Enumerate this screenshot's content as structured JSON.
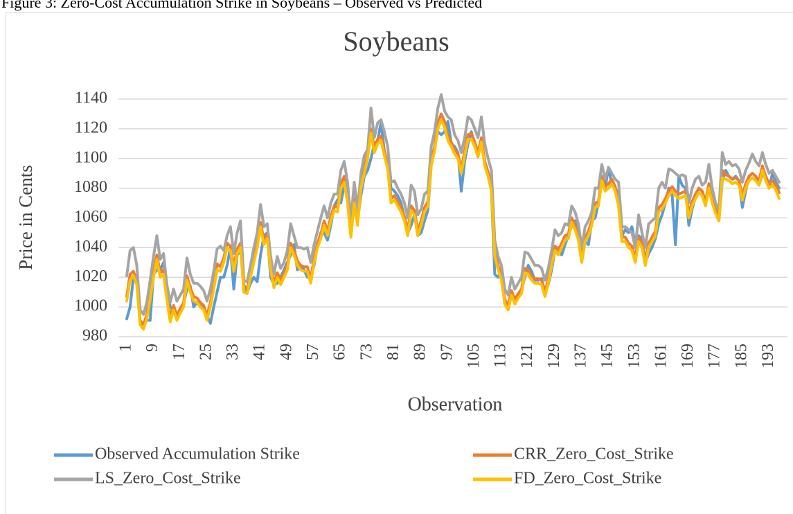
{
  "caption": "Figure 3: Zero-Cost Accumulation Strike in Soybeans – Observed vs Predicted",
  "chart_data": {
    "type": "line",
    "title": "Soybeans",
    "x_label": "Observation",
    "y_label": "Price in Cents",
    "x": [
      1,
      2,
      3,
      4,
      5,
      6,
      7,
      8,
      9,
      10,
      11,
      12,
      13,
      14,
      15,
      16,
      17,
      18,
      19,
      20,
      21,
      22,
      23,
      24,
      25,
      26,
      27,
      28,
      29,
      30,
      31,
      32,
      33,
      34,
      35,
      36,
      37,
      38,
      39,
      40,
      41,
      42,
      43,
      44,
      45,
      46,
      47,
      48,
      49,
      50,
      51,
      52,
      53,
      54,
      55,
      56,
      57,
      58,
      59,
      60,
      61,
      62,
      63,
      64,
      65,
      66,
      67,
      68,
      69,
      70,
      71,
      72,
      73,
      74,
      75,
      76,
      77,
      78,
      79,
      80,
      81,
      82,
      83,
      84,
      85,
      86,
      87,
      88,
      89,
      90,
      91,
      92,
      93,
      94,
      95,
      96,
      97,
      98,
      99,
      100,
      101,
      102,
      103,
      104,
      105,
      106,
      107,
      108,
      109,
      110,
      111,
      112,
      113,
      114,
      115,
      116,
      117,
      118,
      119,
      120,
      121,
      122,
      123,
      124,
      125,
      126,
      127,
      128,
      129,
      130,
      131,
      132,
      133,
      134,
      135,
      136,
      137,
      138,
      139,
      140,
      141,
      142,
      143,
      144,
      145,
      146,
      147,
      148,
      149,
      150,
      151,
      152,
      153,
      154,
      155,
      156,
      157,
      158,
      159,
      160,
      161,
      162,
      163,
      164,
      165,
      166,
      167,
      168,
      169,
      170,
      171,
      172,
      173,
      174,
      175,
      176,
      177,
      178,
      179,
      180,
      181,
      182,
      183,
      184,
      185,
      186,
      187,
      188,
      189,
      190,
      191,
      192,
      193,
      194,
      195,
      196
    ],
    "xlim": [
      1,
      196
    ],
    "xticks": [
      1,
      9,
      17,
      25,
      33,
      41,
      49,
      57,
      65,
      73,
      81,
      89,
      97,
      105,
      113,
      121,
      129,
      137,
      145,
      153,
      161,
      169,
      177,
      185,
      193
    ],
    "ylim": [
      980,
      1140
    ],
    "yticks": [
      980,
      1000,
      1020,
      1040,
      1060,
      1080,
      1100,
      1120,
      1140
    ],
    "grid": true,
    "series": [
      {
        "name": "Observed Accumulation Strike",
        "color": "#5b9bd5",
        "values": [
          992,
          1000,
          1020,
          1018,
          990,
          988,
          991,
          991,
          1022,
          1025,
          1025,
          1030,
          1012,
          1000,
          998,
          996,
          996,
          1002,
          1012,
          1014,
          1000,
          1003,
          1003,
          1000,
          994,
          989,
          1000,
          1010,
          1020,
          1020,
          1028,
          1040,
          1012,
          1035,
          1038,
          1015,
          1010,
          1016,
          1020,
          1017,
          1035,
          1048,
          1050,
          1020,
          1015,
          1016,
          1020,
          1025,
          1030,
          1035,
          1042,
          1025,
          1028,
          1025,
          1020,
          1020,
          1028,
          1042,
          1050,
          1050,
          1045,
          1055,
          1068,
          1072,
          1070,
          1082,
          1080,
          1060,
          1065,
          1058,
          1075,
          1088,
          1092,
          1100,
          1110,
          1112,
          1124,
          1105,
          1096,
          1080,
          1078,
          1075,
          1070,
          1060,
          1050,
          1055,
          1062,
          1048,
          1050,
          1058,
          1065,
          1095,
          1108,
          1118,
          1116,
          1118,
          1125,
          1110,
          1108,
          1104,
          1078,
          1098,
          1110,
          1118,
          1110,
          1104,
          1110,
          1098,
          1090,
          1078,
          1022,
          1020,
          1024,
          1002,
          1000,
          1010,
          1005,
          1006,
          1012,
          1020,
          1028,
          1024,
          1018,
          1018,
          1019,
          1010,
          1015,
          1025,
          1038,
          1040,
          1035,
          1042,
          1048,
          1055,
          1058,
          1045,
          1032,
          1044,
          1042,
          1058,
          1060,
          1070,
          1088,
          1080,
          1094,
          1082,
          1080,
          1076,
          1048,
          1052,
          1050,
          1054,
          1042,
          1048,
          1046,
          1030,
          1036,
          1040,
          1046,
          1056,
          1062,
          1070,
          1080,
          1076,
          1042,
          1088,
          1082,
          1080,
          1055,
          1066,
          1074,
          1080,
          1078,
          1070,
          1082,
          1074,
          1064,
          1058,
          1085,
          1092,
          1088,
          1086,
          1088,
          1085,
          1067,
          1078,
          1088,
          1090,
          1088,
          1082,
          1090,
          1088,
          1080,
          1090,
          1084,
          1080
        ]
      },
      {
        "name": "CRR_Zero_Cost_Strike",
        "color": "#ed7d31",
        "values": [
          1007,
          1022,
          1024,
          1018,
          991,
          988,
          995,
          1008,
          1024,
          1035,
          1023,
          1025,
          1008,
          993,
          1001,
          994,
          999,
          1003,
          1021,
          1013,
          1007,
          1006,
          1003,
          1001,
          994,
          1003,
          1015,
          1029,
          1027,
          1033,
          1043,
          1041,
          1027,
          1039,
          1043,
          1013,
          1012,
          1023,
          1033,
          1043,
          1057,
          1045,
          1049,
          1028,
          1016,
          1023,
          1018,
          1023,
          1028,
          1043,
          1038,
          1031,
          1028,
          1027,
          1027,
          1019,
          1033,
          1043,
          1049,
          1058,
          1051,
          1061,
          1068,
          1067,
          1083,
          1088,
          1073,
          1050,
          1073,
          1058,
          1083,
          1093,
          1103,
          1120,
          1107,
          1113,
          1115,
          1105,
          1096,
          1073,
          1075,
          1071,
          1067,
          1061,
          1051,
          1068,
          1065,
          1051,
          1058,
          1067,
          1071,
          1098,
          1108,
          1124,
          1130,
          1125,
          1115,
          1111,
          1106,
          1103,
          1093,
          1105,
          1116,
          1117,
          1111,
          1104,
          1114,
          1098,
          1091,
          1081,
          1037,
          1028,
          1021,
          1005,
          1001,
          1011,
          1005,
          1009,
          1012,
          1026,
          1025,
          1021,
          1019,
          1019,
          1018,
          1010,
          1019,
          1031,
          1041,
          1038,
          1043,
          1048,
          1049,
          1060,
          1055,
          1048,
          1033,
          1047,
          1051,
          1058,
          1070,
          1071,
          1088,
          1081,
          1083,
          1086,
          1081,
          1071,
          1047,
          1047,
          1043,
          1041,
          1033,
          1047,
          1043,
          1031,
          1043,
          1047,
          1051,
          1067,
          1069,
          1073,
          1078,
          1081,
          1078,
          1076,
          1077,
          1078,
          1063,
          1071,
          1076,
          1080,
          1078,
          1071,
          1083,
          1073,
          1066,
          1061,
          1092,
          1089,
          1088,
          1086,
          1087,
          1085,
          1075,
          1083,
          1088,
          1090,
          1088,
          1085,
          1095,
          1088,
          1083,
          1085,
          1082,
          1077
        ]
      },
      {
        "name": "LS_Zero_Cost_Strike",
        "color": "#a5a5a5",
        "values": [
          1021,
          1038,
          1040,
          1028,
          998,
          995,
          1003,
          1018,
          1034,
          1048,
          1032,
          1036,
          1015,
          1003,
          1012,
          1004,
          1008,
          1012,
          1033,
          1022,
          1016,
          1016,
          1014,
          1011,
          1004,
          1012,
          1024,
          1039,
          1041,
          1038,
          1048,
          1054,
          1036,
          1050,
          1058,
          1018,
          1017,
          1028,
          1040,
          1050,
          1069,
          1054,
          1056,
          1034,
          1022,
          1034,
          1026,
          1030,
          1038,
          1056,
          1048,
          1040,
          1040,
          1039,
          1040,
          1030,
          1042,
          1051,
          1060,
          1068,
          1060,
          1070,
          1076,
          1076,
          1092,
          1098,
          1084,
          1058,
          1084,
          1066,
          1090,
          1102,
          1106,
          1134,
          1114,
          1124,
          1126,
          1118,
          1108,
          1084,
          1085,
          1080,
          1076,
          1070,
          1060,
          1082,
          1078,
          1062,
          1066,
          1076,
          1078,
          1108,
          1118,
          1134,
          1143,
          1132,
          1128,
          1126,
          1116,
          1112,
          1104,
          1114,
          1128,
          1126,
          1120,
          1114,
          1128,
          1110,
          1100,
          1092,
          1045,
          1034,
          1028,
          1012,
          1008,
          1020,
          1012,
          1016,
          1020,
          1037,
          1036,
          1032,
          1028,
          1028,
          1026,
          1018,
          1026,
          1038,
          1052,
          1048,
          1050,
          1056,
          1055,
          1068,
          1064,
          1056,
          1040,
          1054,
          1058,
          1064,
          1080,
          1080,
          1096,
          1086,
          1094,
          1090,
          1086,
          1084,
          1054,
          1054,
          1052,
          1050,
          1040,
          1062,
          1050,
          1040,
          1056,
          1058,
          1060,
          1080,
          1084,
          1080,
          1093,
          1092,
          1090,
          1088,
          1089,
          1088,
          1070,
          1080,
          1086,
          1088,
          1082,
          1084,
          1096,
          1080,
          1070,
          1065,
          1104,
          1096,
          1098,
          1095,
          1096,
          1093,
          1084,
          1092,
          1097,
          1103,
          1098,
          1095,
          1104,
          1096,
          1090,
          1092,
          1088,
          1084
        ]
      },
      {
        "name": "FD_Zero_Cost_Strike",
        "color": "#ffc000",
        "values": [
          1004,
          1018,
          1021,
          1015,
          988,
          985,
          992,
          1005,
          1020,
          1032,
          1020,
          1022,
          1005,
          990,
          998,
          991,
          996,
          1000,
          1018,
          1010,
          1004,
          1003,
          1000,
          998,
          991,
          1000,
          1012,
          1025,
          1024,
          1030,
          1040,
          1038,
          1024,
          1036,
          1040,
          1010,
          1009,
          1020,
          1030,
          1040,
          1054,
          1042,
          1046,
          1025,
          1013,
          1020,
          1015,
          1020,
          1025,
          1040,
          1035,
          1028,
          1025,
          1024,
          1024,
          1016,
          1030,
          1040,
          1046,
          1055,
          1048,
          1058,
          1065,
          1064,
          1080,
          1084,
          1070,
          1047,
          1070,
          1055,
          1080,
          1090,
          1100,
          1117,
          1104,
          1110,
          1112,
          1102,
          1093,
          1070,
          1072,
          1068,
          1064,
          1058,
          1048,
          1065,
          1062,
          1048,
          1055,
          1064,
          1068,
          1095,
          1105,
          1120,
          1126,
          1121,
          1112,
          1108,
          1103,
          1100,
          1090,
          1102,
          1113,
          1113,
          1108,
          1101,
          1111,
          1095,
          1088,
          1078,
          1034,
          1025,
          1018,
          1002,
          998,
          1008,
          1002,
          1006,
          1009,
          1023,
          1022,
          1018,
          1016,
          1016,
          1015,
          1007,
          1016,
          1028,
          1038,
          1035,
          1040,
          1045,
          1046,
          1057,
          1052,
          1045,
          1030,
          1044,
          1048,
          1055,
          1067,
          1068,
          1085,
          1078,
          1080,
          1083,
          1078,
          1068,
          1044,
          1044,
          1040,
          1038,
          1030,
          1044,
          1040,
          1028,
          1040,
          1044,
          1048,
          1064,
          1066,
          1070,
          1075,
          1078,
          1075,
          1073,
          1074,
          1075,
          1060,
          1068,
          1073,
          1077,
          1075,
          1068,
          1080,
          1070,
          1063,
          1058,
          1087,
          1086,
          1085,
          1083,
          1084,
          1082,
          1072,
          1080,
          1085,
          1087,
          1085,
          1082,
          1092,
          1085,
          1080,
          1082,
          1079,
          1073
        ]
      }
    ]
  }
}
